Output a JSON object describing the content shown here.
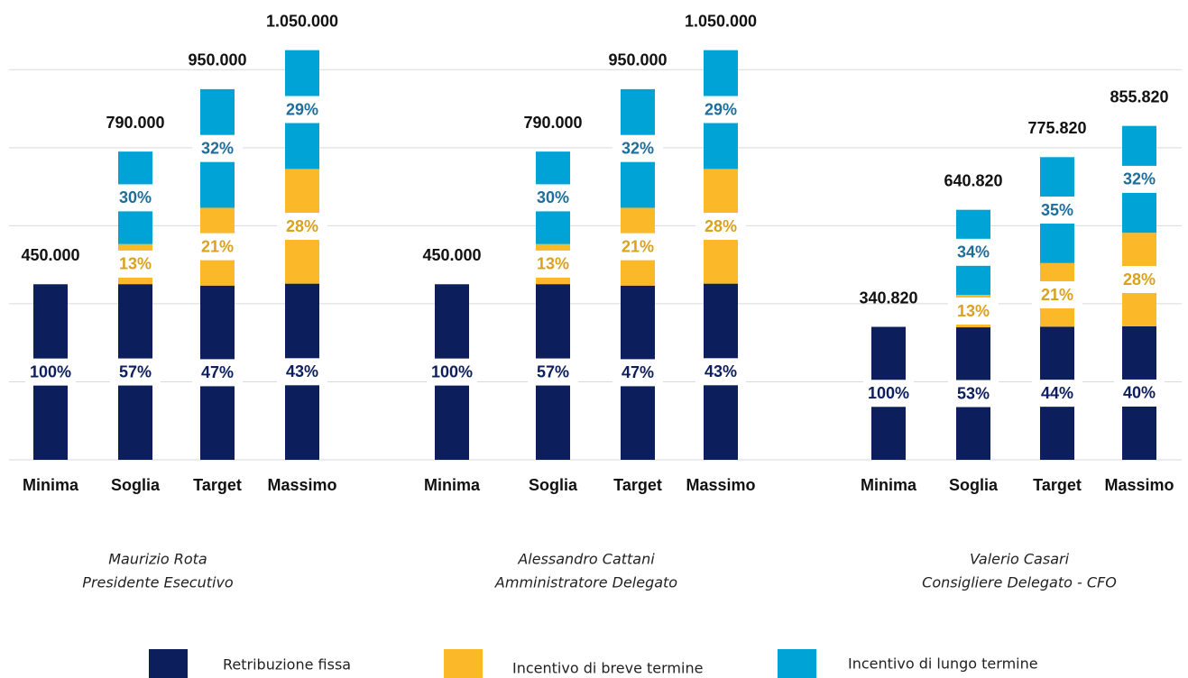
{
  "chart_data": {
    "type": "bar",
    "stacked": true,
    "ylim": [
      0,
      1100000
    ],
    "yticks": [
      0,
      200000,
      400000,
      600000,
      800000,
      1000000
    ],
    "grid": true,
    "series": [
      {
        "name": "Retribuzione fissa",
        "color": "#0c1f5c",
        "label_color": "#0c1f5c"
      },
      {
        "name": "Incentivo di breve termine",
        "color": "#fbb829",
        "label_color": "#d9a11e"
      },
      {
        "name": "Incentivo di lungo termine",
        "color": "#00a3d6",
        "label_color": "#1f6e9a"
      }
    ],
    "groups": [
      {
        "name": "Maurizio Rota",
        "role": "Presidente Esecutivo",
        "categories": [
          "Minima",
          "Soglia",
          "Target",
          "Massimo"
        ],
        "totals": [
          450000,
          790000,
          950000,
          1050000
        ],
        "total_labels": [
          "450.000",
          "790.000",
          "950.000",
          "1.050.000"
        ],
        "segments": [
          {
            "values": [
              100,
              57,
              47,
              43
            ],
            "value_labels": [
              "100%",
              "57%",
              "47%",
              "43%"
            ]
          },
          {
            "values": [
              null,
              13,
              21,
              28
            ],
            "value_labels": [
              null,
              "13%",
              "21%",
              "28%"
            ]
          },
          {
            "values": [
              null,
              30,
              32,
              29
            ],
            "value_labels": [
              null,
              "30%",
              "32%",
              "29%"
            ]
          }
        ]
      },
      {
        "name": "Alessandro Cattani",
        "role": "Amministratore Delegato",
        "categories": [
          "Minima",
          "Soglia",
          "Target",
          "Massimo"
        ],
        "totals": [
          450000,
          790000,
          950000,
          1050000
        ],
        "total_labels": [
          "450.000",
          "790.000",
          "950.000",
          "1.050.000"
        ],
        "segments": [
          {
            "values": [
              100,
              57,
              47,
              43
            ],
            "value_labels": [
              "100%",
              "57%",
              "47%",
              "43%"
            ]
          },
          {
            "values": [
              null,
              13,
              21,
              28
            ],
            "value_labels": [
              null,
              "13%",
              "21%",
              "28%"
            ]
          },
          {
            "values": [
              null,
              30,
              32,
              29
            ],
            "value_labels": [
              null,
              "30%",
              "32%",
              "29%"
            ]
          }
        ]
      },
      {
        "name": "Valerio Casari",
        "role": "Consigliere Delegato - CFO",
        "categories": [
          "Minima",
          "Soglia",
          "Target",
          "Massimo"
        ],
        "totals": [
          340820,
          640820,
          775820,
          855820
        ],
        "total_labels": [
          "340.820",
          "640.820",
          "775.820",
          "855.820"
        ],
        "segments": [
          {
            "values": [
              100,
              53,
              44,
              40
            ],
            "value_labels": [
              "100%",
              "53%",
              "44%",
              "40%"
            ]
          },
          {
            "values": [
              null,
              13,
              21,
              28
            ],
            "value_labels": [
              null,
              "13%",
              "21%",
              "28%"
            ]
          },
          {
            "values": [
              null,
              34,
              35,
              32
            ],
            "value_labels": [
              null,
              "34%",
              "35%",
              "32%"
            ]
          }
        ]
      }
    ]
  }
}
